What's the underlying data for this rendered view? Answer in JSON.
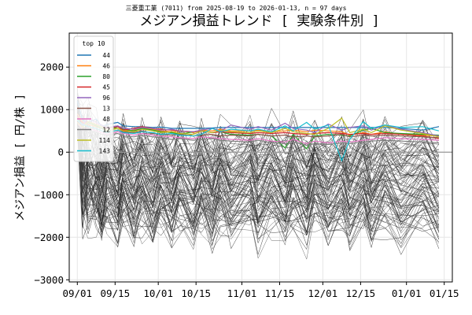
{
  "chart_data": {
    "type": "line",
    "suptitle": "三菱重工業 (7011) from 2025-08-19 to 2026-01-13, n = 97 days",
    "title": "メジアン損益トレンド [ 実験条件別 ]",
    "xlabel": "",
    "ylabel": "メジアン損益 [ 円/株 ]",
    "x_range": [
      "2025-08-29",
      "2026-01-18"
    ],
    "ylim": [
      -3050,
      2800
    ],
    "x_ticks": [
      {
        "date": "2025-09-01",
        "label": "09/01"
      },
      {
        "date": "2025-09-15",
        "label": "09/15"
      },
      {
        "date": "2025-10-01",
        "label": "10/01"
      },
      {
        "date": "2025-10-15",
        "label": "10/15"
      },
      {
        "date": "2025-11-01",
        "label": "11/01"
      },
      {
        "date": "2025-11-15",
        "label": "11/15"
      },
      {
        "date": "2025-12-01",
        "label": "12/01"
      },
      {
        "date": "2025-12-15",
        "label": "12/15"
      },
      {
        "date": "2026-01-01",
        "label": "01/01"
      },
      {
        "date": "2026-01-15",
        "label": "01/15"
      }
    ],
    "y_ticks": [
      {
        "value": 2000,
        "label": "2000"
      },
      {
        "value": 1000,
        "label": "1000"
      },
      {
        "value": 0,
        "label": "0"
      },
      {
        "value": -1000,
        "label": "−1000"
      },
      {
        "value": -2000,
        "label": "−2000"
      },
      {
        "value": -3000,
        "label": "−3000"
      }
    ],
    "grid": true,
    "zero_line": true,
    "legend": {
      "title": "top 10",
      "placement": "top-left"
    },
    "series": [
      {
        "name": "44",
        "color": "#1f77b4",
        "x": [
          "2025-09-01",
          "2025-09-03",
          "2025-09-05",
          "2025-09-08",
          "2025-09-10",
          "2025-09-12",
          "2025-09-16",
          "2025-09-18",
          "2025-09-22",
          "2025-09-25",
          "2025-09-29",
          "2025-10-02",
          "2025-10-06",
          "2025-10-09",
          "2025-10-14",
          "2025-10-17",
          "2025-10-21",
          "2025-10-24",
          "2025-10-28",
          "2025-11-04",
          "2025-11-07",
          "2025-11-12",
          "2025-11-17",
          "2025-11-20",
          "2025-11-25",
          "2025-11-28",
          "2025-12-03",
          "2025-12-08",
          "2025-12-11",
          "2025-12-16",
          "2025-12-19",
          "2025-12-24",
          "2025-12-30",
          "2026-01-07",
          "2026-01-13"
        ],
        "y": [
          1200,
          750,
          700,
          780,
          600,
          650,
          700,
          620,
          600,
          600,
          580,
          590,
          560,
          560,
          560,
          560,
          570,
          580,
          580,
          580,
          580,
          580,
          580,
          580,
          580,
          580,
          580,
          580,
          580,
          580,
          580,
          580,
          560,
          520,
          600
        ]
      },
      {
        "name": "46",
        "color": "#ff7f0e",
        "x": [
          "2025-09-01",
          "2025-09-03",
          "2025-09-05",
          "2025-09-08",
          "2025-09-10",
          "2025-09-12",
          "2025-09-16",
          "2025-09-18",
          "2025-09-22",
          "2025-09-25",
          "2025-09-29",
          "2025-10-02",
          "2025-10-06",
          "2025-10-09",
          "2025-10-14",
          "2025-10-17",
          "2025-10-21",
          "2025-10-24",
          "2025-10-28",
          "2025-11-04",
          "2025-11-07",
          "2025-11-12",
          "2025-11-17",
          "2025-11-20",
          "2025-11-25",
          "2025-11-28",
          "2025-12-03",
          "2025-12-08",
          "2025-12-11",
          "2025-12-16",
          "2025-12-19",
          "2025-12-24",
          "2025-12-30",
          "2026-01-07",
          "2026-01-13"
        ],
        "y": [
          900,
          700,
          650,
          600,
          560,
          500,
          560,
          500,
          520,
          560,
          540,
          500,
          480,
          500,
          460,
          520,
          500,
          540,
          500,
          500,
          520,
          480,
          500,
          520,
          480,
          520,
          500,
          480,
          400,
          460,
          420,
          480,
          420,
          400,
          380
        ]
      },
      {
        "name": "80",
        "color": "#2ca02c",
        "x": [
          "2025-09-01",
          "2025-09-03",
          "2025-09-05",
          "2025-09-08",
          "2025-09-10",
          "2025-09-12",
          "2025-09-16",
          "2025-09-18",
          "2025-09-22",
          "2025-09-25",
          "2025-09-29",
          "2025-10-02",
          "2025-10-06",
          "2025-10-09",
          "2025-10-14",
          "2025-10-17",
          "2025-10-21",
          "2025-10-24",
          "2025-10-28",
          "2025-11-04",
          "2025-11-07",
          "2025-11-12",
          "2025-11-17",
          "2025-11-20",
          "2025-11-25",
          "2025-11-28",
          "2025-12-03",
          "2025-12-08",
          "2025-12-11",
          "2025-12-16",
          "2025-12-19",
          "2025-12-24",
          "2025-12-30",
          "2026-01-07",
          "2026-01-13"
        ],
        "y": [
          800,
          600,
          700,
          620,
          560,
          480,
          600,
          540,
          500,
          560,
          520,
          480,
          460,
          420,
          480,
          500,
          460,
          480,
          420,
          400,
          420,
          380,
          100,
          420,
          80,
          380,
          420,
          400,
          380,
          520,
          560,
          460,
          440,
          420,
          400
        ]
      },
      {
        "name": "45",
        "color": "#d62728",
        "x": [
          "2025-09-01",
          "2025-09-03",
          "2025-09-05",
          "2025-09-08",
          "2025-09-10",
          "2025-09-12",
          "2025-09-16",
          "2025-09-18",
          "2025-09-22",
          "2025-09-25",
          "2025-09-29",
          "2025-10-02",
          "2025-10-06",
          "2025-10-09",
          "2025-10-14",
          "2025-10-17",
          "2025-10-21",
          "2025-10-24",
          "2025-10-28",
          "2025-11-04",
          "2025-11-07",
          "2025-11-12",
          "2025-11-17",
          "2025-11-20",
          "2025-11-25",
          "2025-11-28",
          "2025-12-03",
          "2025-12-08",
          "2025-12-11",
          "2025-12-16",
          "2025-12-19",
          "2025-12-24",
          "2025-12-30",
          "2026-01-07",
          "2026-01-13"
        ],
        "y": [
          850,
          680,
          720,
          650,
          600,
          560,
          600,
          520,
          560,
          600,
          560,
          540,
          520,
          500,
          480,
          500,
          460,
          480,
          460,
          440,
          460,
          440,
          460,
          440,
          420,
          440,
          460,
          440,
          420,
          440,
          420,
          440,
          420,
          380,
          320
        ]
      },
      {
        "name": "96",
        "color": "#9467bd",
        "x": [
          "2025-09-01",
          "2025-09-03",
          "2025-09-05",
          "2025-09-08",
          "2025-09-10",
          "2025-09-12",
          "2025-09-16",
          "2025-09-18",
          "2025-09-22",
          "2025-09-25",
          "2025-09-29",
          "2025-10-02",
          "2025-10-06",
          "2025-10-09",
          "2025-10-14",
          "2025-10-17",
          "2025-10-21",
          "2025-10-24",
          "2025-10-28",
          "2025-11-04",
          "2025-11-07",
          "2025-11-12",
          "2025-11-17",
          "2025-11-20",
          "2025-11-25",
          "2025-11-28",
          "2025-12-03",
          "2025-12-08",
          "2025-12-11",
          "2025-12-16",
          "2025-12-19",
          "2025-12-24",
          "2025-12-30",
          "2026-01-07",
          "2026-01-13"
        ],
        "y": [
          750,
          620,
          800,
          700,
          640,
          580,
          620,
          560,
          540,
          580,
          560,
          520,
          540,
          500,
          480,
          520,
          560,
          500,
          640,
          540,
          600,
          520,
          680,
          560,
          520,
          460,
          660,
          520,
          580,
          620,
          520,
          640,
          540,
          460,
          380
        ]
      },
      {
        "name": "13",
        "color": "#8c564b",
        "x": [
          "2025-09-01",
          "2025-09-03",
          "2025-09-05",
          "2025-09-08",
          "2025-09-10",
          "2025-09-12",
          "2025-09-16",
          "2025-09-18",
          "2025-09-22",
          "2025-09-25",
          "2025-09-29",
          "2025-10-02",
          "2025-10-06",
          "2025-10-09",
          "2025-10-14",
          "2025-10-17",
          "2025-10-21",
          "2025-10-24",
          "2025-10-28",
          "2025-11-04",
          "2025-11-07",
          "2025-11-12",
          "2025-11-17",
          "2025-11-20",
          "2025-11-25",
          "2025-11-28",
          "2025-12-03",
          "2025-12-08",
          "2025-12-11",
          "2025-12-16",
          "2025-12-19",
          "2025-12-24",
          "2025-12-30",
          "2026-01-07",
          "2026-01-13"
        ],
        "y": [
          650,
          560,
          600,
          560,
          500,
          460,
          520,
          480,
          460,
          500,
          440,
          420,
          400,
          420,
          380,
          400,
          420,
          380,
          400,
          380,
          420,
          380,
          400,
          360,
          380,
          360,
          380,
          420,
          360,
          400,
          380,
          400,
          380,
          360,
          340
        ]
      },
      {
        "name": "48",
        "color": "#e377c2",
        "x": [
          "2025-09-01",
          "2025-09-03",
          "2025-09-05",
          "2025-09-08",
          "2025-09-10",
          "2025-09-12",
          "2025-09-16",
          "2025-09-18",
          "2025-09-22",
          "2025-09-25",
          "2025-09-29",
          "2025-10-02",
          "2025-10-06",
          "2025-10-09",
          "2025-10-14",
          "2025-10-17",
          "2025-10-21",
          "2025-10-24",
          "2025-10-28",
          "2025-11-04",
          "2025-11-07",
          "2025-11-12",
          "2025-11-17",
          "2025-11-20",
          "2025-11-25",
          "2025-11-28",
          "2025-12-03",
          "2025-12-08",
          "2025-12-11",
          "2025-12-16",
          "2025-12-19",
          "2025-12-24",
          "2025-12-30",
          "2026-01-07",
          "2026-01-13"
        ],
        "y": [
          700,
          520,
          560,
          500,
          460,
          420,
          480,
          440,
          400,
          440,
          400,
          380,
          360,
          340,
          320,
          360,
          340,
          320,
          300,
          280,
          320,
          260,
          240,
          300,
          200,
          260,
          220,
          260,
          240,
          280,
          300,
          340,
          320,
          300,
          280
        ]
      },
      {
        "name": "12",
        "color": "#7f7f7f",
        "x": [
          "2025-09-01",
          "2025-09-03",
          "2025-09-05",
          "2025-09-08",
          "2025-09-10",
          "2025-09-12",
          "2025-09-16",
          "2025-09-18",
          "2025-09-22",
          "2025-09-25",
          "2025-09-29",
          "2025-10-02",
          "2025-10-06",
          "2025-10-09",
          "2025-10-14",
          "2025-10-17",
          "2025-10-21",
          "2025-10-24",
          "2025-10-28",
          "2025-11-04",
          "2025-11-07",
          "2025-11-12",
          "2025-11-17",
          "2025-11-20",
          "2025-11-25",
          "2025-11-28",
          "2025-12-03",
          "2025-12-08",
          "2025-12-11",
          "2025-12-16",
          "2025-12-19",
          "2025-12-24",
          "2025-12-30",
          "2026-01-07",
          "2026-01-13"
        ],
        "y": [
          600,
          500,
          520,
          460,
          420,
          400,
          440,
          380,
          360,
          400,
          360,
          340,
          300,
          320,
          280,
          300,
          320,
          280,
          260,
          240,
          280,
          220,
          200,
          240,
          160,
          200,
          180,
          220,
          200,
          240,
          260,
          280,
          260,
          240,
          220
        ]
      },
      {
        "name": "114",
        "color": "#bcbd22",
        "x": [
          "2025-09-01",
          "2025-09-03",
          "2025-09-05",
          "2025-09-08",
          "2025-09-10",
          "2025-09-12",
          "2025-09-16",
          "2025-09-18",
          "2025-09-22",
          "2025-09-25",
          "2025-09-29",
          "2025-10-02",
          "2025-10-06",
          "2025-10-09",
          "2025-10-14",
          "2025-10-17",
          "2025-10-21",
          "2025-10-24",
          "2025-10-28",
          "2025-11-04",
          "2025-11-07",
          "2025-11-12",
          "2025-11-17",
          "2025-11-20",
          "2025-11-25",
          "2025-11-28",
          "2025-12-03",
          "2025-12-08",
          "2025-12-11",
          "2025-12-16",
          "2025-12-19",
          "2025-12-24",
          "2025-12-30",
          "2026-01-07",
          "2026-01-13"
        ],
        "y": [
          700,
          580,
          720,
          640,
          600,
          520,
          560,
          500,
          480,
          540,
          500,
          460,
          480,
          440,
          420,
          500,
          460,
          520,
          480,
          460,
          500,
          460,
          560,
          480,
          440,
          420,
          560,
          800,
          460,
          540,
          460,
          620,
          520,
          440,
          360
        ]
      },
      {
        "name": "143",
        "color": "#17becf",
        "x": [
          "2025-09-01",
          "2025-09-03",
          "2025-09-05",
          "2025-09-08",
          "2025-09-10",
          "2025-09-12",
          "2025-09-16",
          "2025-09-18",
          "2025-09-22",
          "2025-09-25",
          "2025-09-29",
          "2025-10-02",
          "2025-10-06",
          "2025-10-09",
          "2025-10-14",
          "2025-10-17",
          "2025-10-21",
          "2025-10-24",
          "2025-10-28",
          "2025-11-04",
          "2025-11-07",
          "2025-11-12",
          "2025-11-17",
          "2025-11-20",
          "2025-11-25",
          "2025-11-28",
          "2025-12-03",
          "2025-12-08",
          "2025-12-11",
          "2025-12-16",
          "2025-12-19",
          "2025-12-24",
          "2025-12-30",
          "2026-01-07",
          "2026-01-13"
        ],
        "y": [
          750,
          650,
          600,
          560,
          500,
          460,
          520,
          460,
          440,
          480,
          460,
          420,
          440,
          400,
          380,
          420,
          560,
          480,
          540,
          500,
          540,
          480,
          620,
          500,
          700,
          540,
          640,
          -200,
          300,
          720,
          560,
          640,
          580,
          600,
          500
        ]
      }
    ]
  }
}
